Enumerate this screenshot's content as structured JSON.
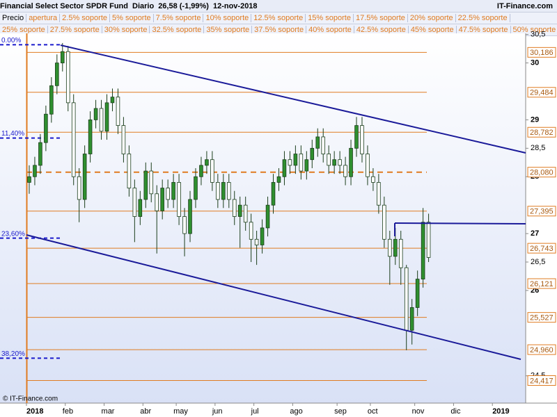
{
  "header": {
    "title": "Financial Select Sector SPDR Fund",
    "period": "Diario",
    "quote": "26,58 (-1,99%)",
    "date": "12-nov-2018",
    "brand": "IT-Finance.com",
    "legend_label": "Precio",
    "legend_row1": [
      "apertura",
      "2.5% soporte",
      "5% soporte",
      "7.5% soporte",
      "10% soporte",
      "12.5% soporte",
      "15% soporte",
      "17.5% soporte",
      "20% soporte",
      "22.5% soporte"
    ],
    "legend_row2": [
      "25% soporte",
      "27.5% soporte",
      "30% soporte",
      "32.5% soporte",
      "35% soporte",
      "37.5% soporte",
      "40% soporte",
      "42.5% soporte",
      "45% soporte",
      "47.5% soporte",
      "50% soporte"
    ]
  },
  "footer": "© IT-Finance.com",
  "chart_data": {
    "type": "candlestick",
    "categories": [
      "2018",
      null,
      null,
      null,
      null,
      null,
      null,
      "feb",
      null,
      null,
      null,
      null,
      null,
      null,
      "mar",
      null,
      null,
      null,
      null,
      null,
      null,
      "abr",
      null,
      null,
      null,
      null,
      null,
      "may",
      null,
      null,
      null,
      null,
      null,
      null,
      "jun",
      null,
      null,
      null,
      null,
      null,
      null,
      "jul",
      null,
      null,
      null,
      null,
      null,
      null,
      "ago",
      null,
      null,
      null,
      null,
      null,
      null,
      null,
      "sep",
      null,
      null,
      null,
      null,
      null,
      "oct",
      null,
      null,
      null,
      null,
      null,
      null,
      null,
      "nov",
      null,
      null,
      null,
      null,
      null,
      null,
      "dic",
      null,
      null,
      null,
      null,
      null,
      null,
      "2019",
      null,
      null,
      null,
      null,
      null
    ],
    "open": [
      27.9,
      28.0,
      28.2,
      28.6,
      29.1,
      29.6,
      30.0,
      30.2,
      29.3,
      28.0,
      27.6,
      28.4,
      29.0,
      29.2,
      28.8,
      29.3,
      29.4,
      28.9,
      28.4,
      27.8,
      27.3,
      27.6,
      28.1,
      27.7,
      27.4,
      27.8,
      27.6,
      27.9,
      27.3,
      27.0,
      27.6,
      28.0,
      28.2,
      28.3,
      27.9,
      27.6,
      27.9,
      27.6,
      27.3,
      27.5,
      27.2,
      26.9,
      26.8,
      27.1,
      27.5,
      27.9,
      28.0,
      28.3,
      28.2,
      28.4,
      28.1,
      28.3,
      28.5,
      28.7,
      28.4,
      28.2,
      28.3,
      28.2,
      28.0,
      28.5,
      28.9,
      28.4,
      28.0,
      27.9,
      27.5,
      26.9,
      26.6,
      26.9,
      26.4,
      25.3,
      25.7,
      26.2,
      27.2,
      null,
      null,
      null,
      null,
      null,
      null,
      null,
      null,
      null,
      null,
      null,
      null,
      null,
      null,
      null,
      null,
      null
    ],
    "high": [
      28.2,
      28.35,
      28.75,
      29.25,
      29.75,
      30.15,
      30.35,
      30.3,
      29.45,
      28.15,
      28.55,
      29.15,
      29.35,
      29.35,
      29.45,
      29.55,
      29.55,
      29.05,
      28.55,
      27.95,
      27.75,
      28.25,
      28.25,
      27.85,
      27.95,
      27.95,
      28.05,
      28.05,
      27.45,
      27.75,
      28.15,
      28.35,
      28.45,
      28.45,
      28.05,
      28.05,
      28.05,
      27.75,
      27.65,
      27.65,
      27.35,
      27.05,
      27.25,
      27.65,
      28.05,
      28.15,
      28.45,
      28.45,
      28.55,
      28.55,
      28.45,
      28.65,
      28.85,
      28.85,
      28.55,
      28.45,
      28.45,
      28.35,
      28.65,
      29.05,
      29.05,
      28.55,
      28.15,
      28.05,
      27.65,
      27.05,
      27.1,
      27.05,
      26.45,
      25.85,
      26.35,
      27.45,
      27.35,
      null,
      null,
      null,
      null,
      null,
      null,
      null,
      null,
      null,
      null,
      null,
      null,
      null,
      null,
      null,
      null,
      null
    ],
    "low": [
      27.7,
      27.85,
      28.05,
      28.45,
      28.95,
      29.45,
      29.85,
      29.15,
      27.85,
      27.2,
      27.45,
      28.25,
      28.85,
      28.65,
      28.65,
      29.15,
      28.75,
      28.25,
      27.65,
      26.85,
      27.15,
      27.45,
      27.55,
      26.65,
      27.25,
      27.45,
      27.45,
      27.15,
      26.6,
      26.85,
      27.45,
      27.85,
      28.05,
      27.75,
      27.45,
      27.45,
      27.45,
      27.15,
      26.75,
      27.05,
      26.5,
      26.45,
      26.65,
      26.95,
      27.35,
      27.75,
      27.85,
      28.05,
      28.05,
      27.95,
      27.95,
      28.15,
      28.35,
      28.25,
      28.05,
      28.05,
      28.05,
      27.85,
      27.85,
      28.35,
      28.25,
      27.85,
      27.75,
      27.35,
      26.75,
      26.1,
      26.45,
      26.1,
      24.95,
      25.05,
      25.55,
      26.05,
      26.5,
      null,
      null,
      null,
      null,
      null,
      null,
      null,
      null,
      null,
      null,
      null,
      null,
      null,
      null,
      null,
      null,
      null
    ],
    "close": [
      28.0,
      28.2,
      28.6,
      29.1,
      29.6,
      30.0,
      30.2,
      29.3,
      28.0,
      27.6,
      28.4,
      29.0,
      29.2,
      28.8,
      29.3,
      29.4,
      28.9,
      28.4,
      27.8,
      27.3,
      27.6,
      28.1,
      27.7,
      27.4,
      27.8,
      27.6,
      27.9,
      27.3,
      27.0,
      27.6,
      28.0,
      28.2,
      28.3,
      27.9,
      27.6,
      27.9,
      27.6,
      27.3,
      27.5,
      27.2,
      26.9,
      26.8,
      27.1,
      27.5,
      27.9,
      28.0,
      28.3,
      28.2,
      28.4,
      28.1,
      28.3,
      28.5,
      28.7,
      28.4,
      28.2,
      28.3,
      28.2,
      28.0,
      28.5,
      28.9,
      28.4,
      28.0,
      27.9,
      27.5,
      26.9,
      26.6,
      26.9,
      26.4,
      25.3,
      25.7,
      26.2,
      27.2,
      26.58,
      null,
      null,
      null,
      null,
      null,
      null,
      null,
      null,
      null,
      null,
      null,
      null,
      null,
      null,
      null,
      null,
      null
    ],
    "up_color": "#2f8f2f",
    "down_color": "#ffffff",
    "outline_color": "#1a3d1a",
    "ylim": [
      24.02,
      30.52
    ],
    "yticks": [
      {
        "value": 30.5,
        "label": "30,5"
      },
      30,
      29,
      {
        "value": 28.5,
        "label": "28,5"
      },
      28,
      27,
      {
        "value": 26.5,
        "label": "26,5"
      },
      26,
      {
        "value": 24.5,
        "label": "24,5"
      }
    ],
    "levels": [
      {
        "value": 30.186,
        "label": "30,186",
        "style": "solid"
      },
      {
        "value": 29.484,
        "label": "29,484",
        "style": "solid"
      },
      {
        "value": 28.782,
        "label": "28,782",
        "style": "solid"
      },
      {
        "value": 28.08,
        "label": "28,080",
        "style": "dashed"
      },
      {
        "value": 27.395,
        "label": "27,395",
        "style": "solid"
      },
      {
        "value": 26.743,
        "label": "26,743",
        "style": "solid"
      },
      {
        "value": 26.121,
        "label": "26,121",
        "style": "solid"
      },
      {
        "value": 25.527,
        "label": "25,527",
        "style": "solid"
      },
      {
        "value": 24.96,
        "label": "24,960",
        "style": "solid"
      },
      {
        "value": 24.417,
        "label": "24,417",
        "style": "solid"
      }
    ],
    "level_color": "#e07b20",
    "fibonacci": [
      {
        "value": 30.32,
        "label": "0.00%"
      },
      {
        "value": 28.68,
        "label": "11,40%"
      },
      {
        "value": 26.92,
        "label": "23,60%"
      },
      {
        "value": 24.81,
        "label": "38,20%"
      }
    ],
    "fib_color": "#1a1acc"
  }
}
